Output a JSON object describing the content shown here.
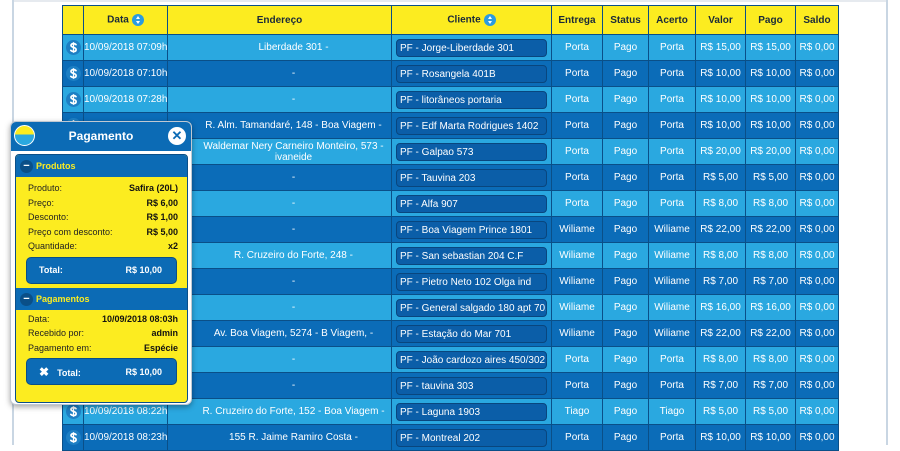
{
  "table": {
    "headers": [
      "",
      "Data",
      "Endereço",
      "Cliente",
      "Entrega",
      "Status",
      "Acerto",
      "Valor",
      "Pago",
      "Saldo"
    ],
    "rows": [
      {
        "date": "10/09/2018 07:09h",
        "address": "Liberdade 301 -",
        "client": "PF - Jorge-Liberdade 301",
        "delivery": "Porta",
        "status": "Pago",
        "settlement": "Porta",
        "value": "R$ 15,00",
        "paid": "R$ 15,00",
        "balance": "R$ 0,00"
      },
      {
        "date": "10/09/2018 07:10h",
        "address": "-",
        "client": "PF - Rosangela 401B",
        "delivery": "Porta",
        "status": "Pago",
        "settlement": "Porta",
        "value": "R$ 10,00",
        "paid": "R$ 10,00",
        "balance": "R$ 0,00"
      },
      {
        "date": "10/09/2018 07:28h",
        "address": "-",
        "client": "PF - litorâneos portaria",
        "delivery": "Porta",
        "status": "Pago",
        "settlement": "Porta",
        "value": "R$ 10,00",
        "paid": "R$ 10,00",
        "balance": "R$ 0,00"
      },
      {
        "date": "",
        "address": "R. Alm. Tamandaré, 148 - Boa Viagem -",
        "client": "PF - Edf Marta Rodrigues 1402",
        "delivery": "Porta",
        "status": "Pago",
        "settlement": "Porta",
        "value": "R$ 10,00",
        "paid": "R$ 10,00",
        "balance": "R$ 0,00"
      },
      {
        "date": "",
        "address": "Waldemar Nery Carneiro Monteiro, 573 - ivaneide",
        "client": "PF - Galpao 573",
        "delivery": "Porta",
        "status": "Pago",
        "settlement": "Porta",
        "value": "R$ 20,00",
        "paid": "R$ 20,00",
        "balance": "R$ 0,00"
      },
      {
        "date": "",
        "address": "-",
        "client": "PF - Tauvina 203",
        "delivery": "Porta",
        "status": "Pago",
        "settlement": "Porta",
        "value": "R$ 5,00",
        "paid": "R$ 5,00",
        "balance": "R$ 0,00"
      },
      {
        "date": "",
        "address": "-",
        "client": "PF - Alfa 907",
        "delivery": "Porta",
        "status": "Pago",
        "settlement": "Porta",
        "value": "R$ 8,00",
        "paid": "R$ 8,00",
        "balance": "R$ 0,00"
      },
      {
        "date": "",
        "address": "-",
        "client": "PF - Boa Viagem Prince 1801",
        "delivery": "Wiliame",
        "status": "Pago",
        "settlement": "Wiliame",
        "value": "R$ 22,00",
        "paid": "R$ 22,00",
        "balance": "R$ 0,00"
      },
      {
        "date": "",
        "address": "R. Cruzeiro do Forte, 248 -",
        "client": "PF - San sebastian 204 C.F",
        "delivery": "Wiliame",
        "status": "Pago",
        "settlement": "Wiliame",
        "value": "R$ 8,00",
        "paid": "R$ 8,00",
        "balance": "R$ 0,00"
      },
      {
        "date": "",
        "address": "-",
        "client": "PF - Pietro Neto 102 Olga ind",
        "delivery": "Wiliame",
        "status": "Pago",
        "settlement": "Wiliame",
        "value": "R$ 7,00",
        "paid": "R$ 7,00",
        "balance": "R$ 0,00"
      },
      {
        "date": "",
        "address": "-",
        "client": "PF - General salgado 180 apt 701",
        "delivery": "Wiliame",
        "status": "Pago",
        "settlement": "Wiliame",
        "value": "R$ 16,00",
        "paid": "R$ 16,00",
        "balance": "R$ 0,00"
      },
      {
        "date": "",
        "address": "Av. Boa Viagem, 5274 - B Viagem, -",
        "client": "PF - Estação do Mar 701",
        "delivery": "Wiliame",
        "status": "Pago",
        "settlement": "Wiliame",
        "value": "R$ 22,00",
        "paid": "R$ 22,00",
        "balance": "R$ 0,00"
      },
      {
        "date": "",
        "address": "-",
        "client": "PF - João cardozo aires 450/302",
        "delivery": "Porta",
        "status": "Pago",
        "settlement": "Porta",
        "value": "R$ 8,00",
        "paid": "R$ 8,00",
        "balance": "R$ 0,00"
      },
      {
        "date": "",
        "address": "-",
        "client": "PF - tauvina 303",
        "delivery": "Porta",
        "status": "Pago",
        "settlement": "Porta",
        "value": "R$ 7,00",
        "paid": "R$ 7,00",
        "balance": "R$ 0,00"
      },
      {
        "date": "10/09/2018 08:22h",
        "address": "R. Cruzeiro do Forte, 152 - Boa Viagem -",
        "client": "PF - Laguna 1903",
        "delivery": "Tiago",
        "status": "Pago",
        "settlement": "Tiago",
        "value": "R$ 5,00",
        "paid": "R$ 5,00",
        "balance": "R$ 0,00"
      },
      {
        "date": "10/09/2018 08:23h",
        "address": "155 R. Jaime Ramiro Costa -",
        "client": "PF - Montreal 202",
        "delivery": "Porta",
        "status": "Pago",
        "settlement": "Porta",
        "value": "R$ 10,00",
        "paid": "R$ 10,00",
        "balance": "R$ 0,00"
      }
    ],
    "row_icon": "dollar-icon",
    "colors": {
      "header": "#fcec20",
      "row_light": "#2aa8e0",
      "row_dark": "#0b6cb8"
    }
  },
  "popup": {
    "title": "Pagamento",
    "products": {
      "section": "Produtos",
      "items": [
        {
          "label": "Produto:",
          "value": "Safira (20L)"
        },
        {
          "label": "Preço:",
          "value": "R$ 6,00"
        },
        {
          "label": "Desconto:",
          "value": "R$ 1,00"
        },
        {
          "label": "Preço com desconto:",
          "value": "R$ 5,00"
        },
        {
          "label": "Quantidade:",
          "value": "x2"
        }
      ],
      "total_label": "Total:",
      "total_value": "R$ 10,00"
    },
    "payments": {
      "section": "Pagamentos",
      "items": [
        {
          "label": "Data:",
          "value": "10/09/2018 08:03h"
        },
        {
          "label": "Recebido por:",
          "value": "admin"
        },
        {
          "label": "Pagamento em:",
          "value": "Espécie"
        }
      ],
      "total_label": "Total:",
      "total_value": "R$ 10,00"
    }
  }
}
